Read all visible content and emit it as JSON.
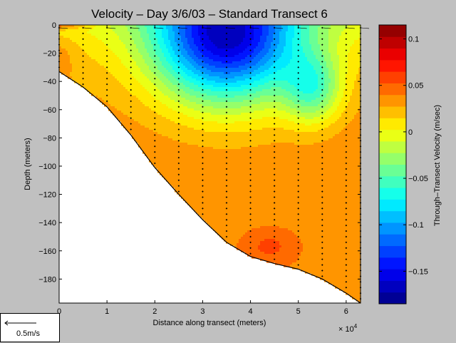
{
  "chart_data": {
    "type": "heatmap",
    "title": "Velocity – Day 3/6/03 – Standard Transect 6",
    "xlabel": "Distance along transect (meters)",
    "ylabel": "Depth (meters)",
    "x_multiplier": "× 10",
    "x_multiplier_exp": "4",
    "xlim": [
      0,
      63000
    ],
    "ylim": [
      -197,
      0
    ],
    "x_ticks": [
      {
        "value": 0,
        "label": "0"
      },
      {
        "value": 10000,
        "label": "1"
      },
      {
        "value": 20000,
        "label": "2"
      },
      {
        "value": 30000,
        "label": "3"
      },
      {
        "value": 40000,
        "label": "4"
      },
      {
        "value": 50000,
        "label": "5"
      },
      {
        "value": 60000,
        "label": "6"
      }
    ],
    "y_ticks": [
      {
        "value": 0,
        "label": "0"
      },
      {
        "value": -20,
        "label": "−20"
      },
      {
        "value": -40,
        "label": "−40"
      },
      {
        "value": -60,
        "label": "−60"
      },
      {
        "value": -80,
        "label": "−80"
      },
      {
        "value": -100,
        "label": "−100"
      },
      {
        "value": -120,
        "label": "−120"
      },
      {
        "value": -140,
        "label": "−140"
      },
      {
        "value": -160,
        "label": "−160"
      },
      {
        "value": -180,
        "label": "−180"
      }
    ],
    "colorbar": {
      "label": "Through–Transect Velocity (m/sec)",
      "range": [
        -0.185,
        0.115
      ],
      "step": 0.0125,
      "ticks": [
        {
          "value": 0.1,
          "label": "0.1"
        },
        {
          "value": 0.05,
          "label": "0.05"
        },
        {
          "value": 0,
          "label": "0"
        },
        {
          "value": -0.05,
          "label": "−0.05"
        },
        {
          "value": -0.1,
          "label": "−0.1"
        },
        {
          "value": -0.15,
          "label": "−0.15"
        }
      ]
    },
    "bottom_profile": [
      [
        0,
        -33
      ],
      [
        5000,
        -44
      ],
      [
        10000,
        -58
      ],
      [
        15000,
        -78
      ],
      [
        20000,
        -101
      ],
      [
        25000,
        -120
      ],
      [
        30000,
        -138
      ],
      [
        35000,
        -154
      ],
      [
        40000,
        -164
      ],
      [
        45000,
        -169
      ],
      [
        50000,
        -173
      ],
      [
        55000,
        -180
      ],
      [
        60000,
        -190
      ],
      [
        63000,
        -197
      ]
    ],
    "station_x": [
      0,
      5000,
      10000,
      15000,
      20000,
      25000,
      30000,
      35000,
      40000,
      45000,
      50000,
      55000,
      60000,
      63000
    ],
    "sample_spacing_m": 4,
    "velocity_core": {
      "x": 35000,
      "depth": -10,
      "min_velocity": -0.18
    },
    "warm_spot": {
      "x": 44000,
      "depth": -157,
      "max_velocity": 0.05
    }
  },
  "legend": {
    "scale_label": "0.5m/s"
  },
  "colors": {
    "background": "#c0c0c0",
    "plot_bg": "#ffffff",
    "marker": "#000000"
  }
}
